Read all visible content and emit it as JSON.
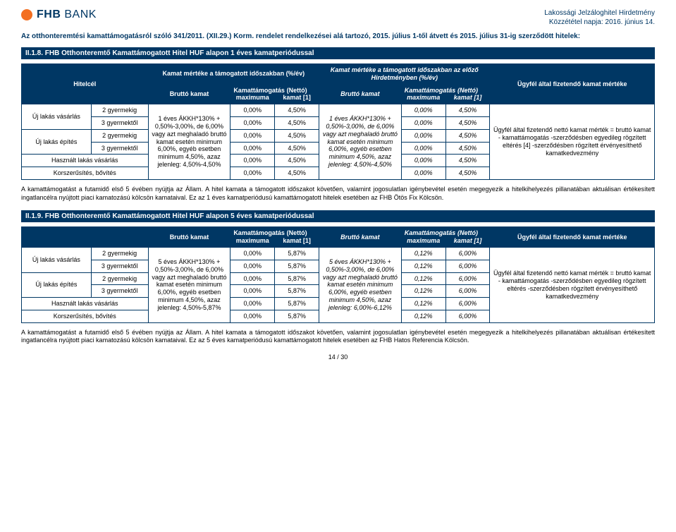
{
  "colors": {
    "brand_navy": "#003764",
    "brand_orange": "#f36f21",
    "white": "#ffffff",
    "black": "#000000"
  },
  "header": {
    "logo_text": "FHB",
    "logo_bank": "BANK",
    "right_line1": "Lakossági Jelzáloghitel Hirdetmény",
    "right_line2": "Közzététel napja: 2016. június 14."
  },
  "law_line": "Az otthonteremtési kamattámogatásról szóló 341/2011. (XII.29.) Korm. rendelet rendelkezései alá tartozó, 2015. július 1-től átvett és 2015. július 31-ig szerződött hitelek:",
  "section1": {
    "bar": "II.1.8.   FHB Otthonteremtő Kamattámogatott Hitel HUF alapon 1 éves kamatperiódussal",
    "top_period_current": "Kamat mértéke a támogatott időszakban (%/év)",
    "top_period_prev": "Kamat mértéke a támogatott időszakban az előző Hirdetményben (%/év)",
    "hitelcel": "Hitelcél",
    "brutto": "Bruttó kamat",
    "kamattam": "Kamattámogatás maximuma",
    "netto": "(Nettó) kamat [1]",
    "ugyfel": "Ügyfél által fizetendő kamat mértéke",
    "formula_current": "1 éves ÁKKH*130% + 0,50%-3,00%, de 6,00% vagy azt meghaladó bruttó kamat esetén minimum 6,00%, egyéb esetben minimum 4,50%, azaz jelenleg: 4,50%-4,50%",
    "formula_prev": "1 éves ÁKKH*130% + 0,50%-3,00%, de 6,00% vagy azt meghaladó bruttó kamat esetén minimum 6,00%, egyéb esetben minimum 4,50%, azaz jelenleg: 4,50%-4,50%",
    "rows": [
      {
        "cat": "Új lakás vásárlás",
        "sub": "2 gyermekig",
        "v1": "0,00%",
        "v2": "4,50%",
        "v3": "0,00%",
        "v4": "4,50%"
      },
      {
        "cat": "",
        "sub": "3 gyermektől",
        "v1": "0,00%",
        "v2": "4,50%",
        "v3": "0,00%",
        "v4": "4,50%"
      },
      {
        "cat": "Új lakás építés",
        "sub": "2 gyermekig",
        "v1": "0,00%",
        "v2": "4,50%",
        "v3": "0,00%",
        "v4": "4,50%"
      },
      {
        "cat": "",
        "sub": "3 gyermektől",
        "v1": "0,00%",
        "v2": "4,50%",
        "v3": "0,00%",
        "v4": "4,50%"
      },
      {
        "cat": "Használt lakás vásárlás",
        "sub": "",
        "v1": "0,00%",
        "v2": "4,50%",
        "v3": "0,00%",
        "v4": "4,50%"
      },
      {
        "cat": "Korszerűsítés, bővítés",
        "sub": "",
        "v1": "0,00%",
        "v2": "4,50%",
        "v3": "0,00%",
        "v4": "4,50%"
      }
    ],
    "result": "Ügyfél által fizetendő nettó kamat mérték\n= bruttó kamat - kamattámogatás\n-szerződésben egyedileg rögzített eltérés\n[4]\n-szerződésben rögzített érvényesíthető kamatkedvezmény",
    "para": "A kamattámogatást a futamidő első 5 évében nyújtja az Állam. A hitel kamata a támogatott időszakot követően, valamint jogosulatlan igénybevétel esetén megegyezik a hitelkihelyezés pillanatában aktuálisan értékesített  ingatlancélra nyújtott piaci kamatozású kölcsön kamataival. Ez az 1 éves kamatperiódusú kamattámogatott hitelek esetében az FHB Ötös Fix Kölcsön."
  },
  "section2": {
    "bar": "II.1.9.   FHB Otthonteremtő Kamattámogatott Hitel HUF alapon 5 éves kamatperiódussal",
    "formula_current": "5 éves ÁKKH*130% + 0,50%-3,00%, de 6,00% vagy azt meghaladó bruttó kamat esetén minimum 6,00%, egyéb esetben minimum 4,50%, azaz jelenleg: 4,50%-5,87%",
    "formula_prev": "5 éves ÁKKH*130% + 0,50%-3,00%, de 6,00% vagy azt meghaladó bruttó kamat esetén minimum 6,00%, egyéb esetben minimum 4,50%, azaz jelenleg: 6,00%-6,12%",
    "rows": [
      {
        "cat": "Új lakás vásárlás",
        "sub": "2 gyermekig",
        "v1": "0,00%",
        "v2": "5,87%",
        "v3": "0,12%",
        "v4": "6,00%"
      },
      {
        "cat": "",
        "sub": "3 gyermektől",
        "v1": "0,00%",
        "v2": "5,87%",
        "v3": "0,12%",
        "v4": "6,00%"
      },
      {
        "cat": "Új lakás építés",
        "sub": "2 gyermekig",
        "v1": "0,00%",
        "v2": "5,87%",
        "v3": "0,12%",
        "v4": "6,00%"
      },
      {
        "cat": "",
        "sub": "3 gyermektől",
        "v1": "0,00%",
        "v2": "5,87%",
        "v3": "0,12%",
        "v4": "6,00%"
      },
      {
        "cat": "Használt lakás vásárlás",
        "sub": "",
        "v1": "0,00%",
        "v2": "5,87%",
        "v3": "0,12%",
        "v4": "6,00%"
      },
      {
        "cat": "Korszerűsítés, bővítés",
        "sub": "",
        "v1": "0,00%",
        "v2": "5,87%",
        "v3": "0,12%",
        "v4": "6,00%"
      }
    ],
    "result": "Ügyfél által fizetendő nettó kamat mérték\n= bruttó kamat\n- kamattámogatás -szerződésben egyedileg rögzített eltérés\n-szerződésben rögzített érvényesíthető kamatkedvezmény",
    "para": "A kamattámogatást a futamidő első 5 évében nyújtja az Állam. A hitel kamata a támogatott időszakot követően, valamint jogosulatlan igénybevétel esetén megegyezik a hitelkihelyezés pillanatában aktuálisan értékesített  ingatlancélra nyújtott piaci kamatozású kölcsön kamataival. Ez az 5 éves kamatperiódusú kamattámogatott hitelek esetében az FHB Hatos Referencia Kölcsön."
  },
  "pagenum": "14 / 30"
}
